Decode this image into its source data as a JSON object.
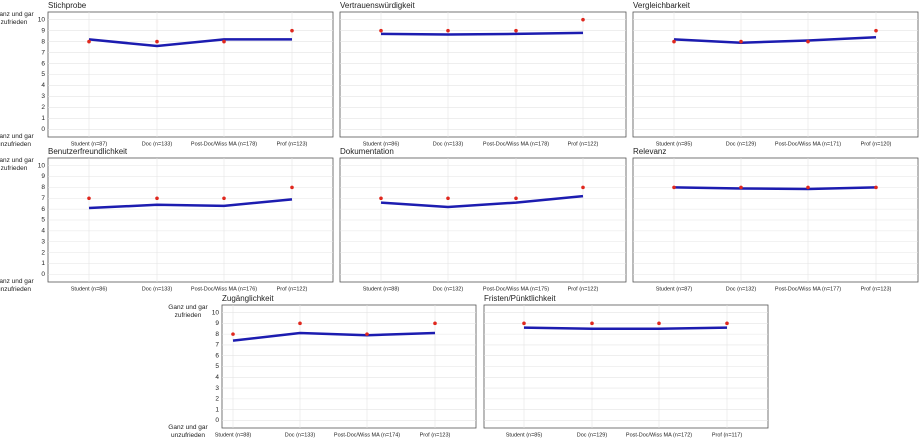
{
  "chart_data": [
    {
      "type": "line",
      "title": "Stichprobe",
      "categories": [
        "Student (n=87)",
        "Doc (n=133)",
        "Post-Doc/Wiss MA (n=178)",
        "Prof (n=123)"
      ],
      "series": [
        {
          "color": "#1c1cb0",
          "style": "line",
          "values": [
            8.2,
            7.6,
            8.2,
            8.2
          ]
        },
        {
          "color": "#e0281e",
          "style": "points",
          "values": [
            8,
            8,
            8,
            9
          ]
        }
      ],
      "ylim": [
        -0.7,
        10.7
      ],
      "yticks": [
        0,
        1,
        2,
        3,
        4,
        5,
        6,
        7,
        8,
        9,
        10
      ],
      "grid": true,
      "y_tick_labels": true,
      "y_top_label": "Ganz und gar zufrieden",
      "y_bottom_label": "Ganz und gar unzufrieden"
    },
    {
      "type": "line",
      "title": "Vertrauenswürdigkeit",
      "categories": [
        "Student (n=86)",
        "Doc (n=133)",
        "Post-Doc/Wiss MA (n=178)",
        "Prof (n=122)"
      ],
      "series": [
        {
          "color": "#1c1cb0",
          "style": "line",
          "values": [
            8.7,
            8.65,
            8.7,
            8.8
          ]
        },
        {
          "color": "#e0281e",
          "style": "points",
          "values": [
            9,
            9,
            9,
            10
          ]
        }
      ],
      "ylim": [
        -0.7,
        10.7
      ],
      "yticks": [
        0,
        1,
        2,
        3,
        4,
        5,
        6,
        7,
        8,
        9,
        10
      ],
      "grid": true,
      "y_tick_labels": false
    },
    {
      "type": "line",
      "title": "Vergleichbarkeit",
      "categories": [
        "Student (n=85)",
        "Doc (n=129)",
        "Post-Doc/Wiss MA (n=171)",
        "Prof (n=120)"
      ],
      "series": [
        {
          "color": "#1c1cb0",
          "style": "line",
          "values": [
            8.2,
            7.9,
            8.1,
            8.4
          ]
        },
        {
          "color": "#e0281e",
          "style": "points",
          "values": [
            8,
            8,
            8,
            9
          ]
        }
      ],
      "ylim": [
        -0.7,
        10.7
      ],
      "yticks": [
        0,
        1,
        2,
        3,
        4,
        5,
        6,
        7,
        8,
        9,
        10
      ],
      "grid": true,
      "y_tick_labels": false
    },
    {
      "type": "line",
      "title": "Benutzerfreundlichkeit",
      "categories": [
        "Student (n=86)",
        "Doc (n=133)",
        "Post-Doc/Wiss MA (n=176)",
        "Prof (n=122)"
      ],
      "series": [
        {
          "color": "#1c1cb0",
          "style": "line",
          "values": [
            6.1,
            6.4,
            6.3,
            6.9
          ]
        },
        {
          "color": "#e0281e",
          "style": "points",
          "values": [
            7,
            7,
            7,
            8
          ]
        }
      ],
      "ylim": [
        -0.7,
        10.7
      ],
      "yticks": [
        0,
        1,
        2,
        3,
        4,
        5,
        6,
        7,
        8,
        9,
        10
      ],
      "grid": true,
      "y_tick_labels": true,
      "y_top_label": "Ganz und gar zufrieden",
      "y_bottom_label": "Ganz und gar unzufrieden"
    },
    {
      "type": "line",
      "title": "Dokumentation",
      "categories": [
        "Student (n=88)",
        "Doc (n=132)",
        "Post-Doc/Wiss MA (n=175)",
        "Prof (n=122)"
      ],
      "series": [
        {
          "color": "#1c1cb0",
          "style": "line",
          "values": [
            6.6,
            6.2,
            6.6,
            7.2
          ]
        },
        {
          "color": "#e0281e",
          "style": "points",
          "values": [
            7,
            7,
            7,
            8
          ]
        }
      ],
      "ylim": [
        -0.7,
        10.7
      ],
      "yticks": [
        0,
        1,
        2,
        3,
        4,
        5,
        6,
        7,
        8,
        9,
        10
      ],
      "grid": true,
      "y_tick_labels": false
    },
    {
      "type": "line",
      "title": "Relevanz",
      "categories": [
        "Student (n=87)",
        "Doc (n=132)",
        "Post-Doc/Wiss MA (n=177)",
        "Prof (n=123)"
      ],
      "series": [
        {
          "color": "#1c1cb0",
          "style": "line",
          "values": [
            8.0,
            7.9,
            7.85,
            8.0
          ]
        },
        {
          "color": "#e0281e",
          "style": "points",
          "values": [
            8,
            8,
            8,
            8
          ]
        }
      ],
      "ylim": [
        -0.7,
        10.7
      ],
      "yticks": [
        0,
        1,
        2,
        3,
        4,
        5,
        6,
        7,
        8,
        9,
        10
      ],
      "grid": true,
      "y_tick_labels": false
    },
    {
      "type": "line",
      "title": "Zugänglichkeit",
      "categories": [
        "Student (n=88)",
        "Doc (n=133)",
        "Post-Doc/Wiss MA (n=174)",
        "Prof (n=123)"
      ],
      "series": [
        {
          "color": "#1c1cb0",
          "style": "line",
          "values": [
            7.4,
            8.1,
            7.9,
            8.1
          ]
        },
        {
          "color": "#e0281e",
          "style": "points",
          "values": [
            8,
            9,
            8,
            9
          ]
        }
      ],
      "ylim": [
        -0.7,
        10.7
      ],
      "yticks": [
        0,
        1,
        2,
        3,
        4,
        5,
        6,
        7,
        8,
        9,
        10
      ],
      "grid": true,
      "y_tick_labels": true,
      "y_top_label": "Ganz und gar zufrieden",
      "y_bottom_label": "Ganz und gar unzufrieden"
    },
    {
      "type": "line",
      "title": "Fristen/Pünktlichkeit",
      "categories": [
        "Student (n=85)",
        "Doc (n=129)",
        "Post-Doc/Wiss MA (n=172)",
        "Prof (n=117)"
      ],
      "series": [
        {
          "color": "#1c1cb0",
          "style": "line",
          "values": [
            8.6,
            8.5,
            8.5,
            8.6
          ]
        },
        {
          "color": "#e0281e",
          "style": "points",
          "values": [
            9,
            9,
            9,
            9
          ]
        }
      ],
      "ylim": [
        -0.7,
        10.7
      ],
      "yticks": [
        0,
        1,
        2,
        3,
        4,
        5,
        6,
        7,
        8,
        9,
        10
      ],
      "grid": true,
      "y_tick_labels": false
    }
  ]
}
